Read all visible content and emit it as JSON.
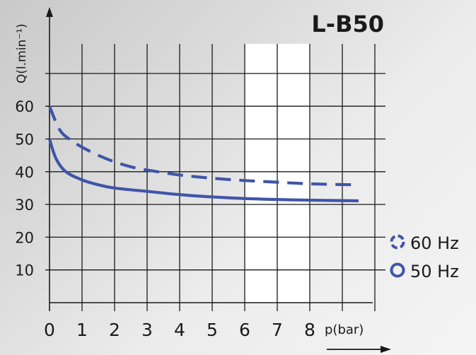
{
  "chart_data": {
    "type": "line",
    "title": "L-B50",
    "ylabel": "Q(l.min⁻¹)",
    "xlabel": "p(bar)",
    "x_ticks": [
      "0",
      "1",
      "2",
      "3",
      "4",
      "5",
      "6",
      "7",
      "8"
    ],
    "y_ticks": [
      "10",
      "20",
      "30",
      "40",
      "50",
      "60"
    ],
    "xlim": [
      0,
      10
    ],
    "ylim": [
      0,
      80
    ],
    "grid": true,
    "highlight_band": [
      6,
      8
    ],
    "legend_position": "bottom-right",
    "series": [
      {
        "name": "60 Hz",
        "color": "#3f55a8",
        "style": "dashed",
        "points": [
          [
            0,
            60
          ],
          [
            0.3,
            53
          ],
          [
            0.6,
            50
          ],
          [
            1,
            47.5
          ],
          [
            1.5,
            45
          ],
          [
            2,
            43
          ],
          [
            2.5,
            41.5
          ],
          [
            3,
            40.5
          ],
          [
            4,
            39
          ],
          [
            5,
            38
          ],
          [
            6,
            37.3
          ],
          [
            7,
            36.8
          ],
          [
            8,
            36.3
          ],
          [
            9.4,
            36
          ]
        ]
      },
      {
        "name": "50 Hz",
        "color": "#3f55a8",
        "style": "solid",
        "points": [
          [
            0,
            50
          ],
          [
            0.2,
            44
          ],
          [
            0.5,
            40
          ],
          [
            1,
            37.5
          ],
          [
            1.5,
            36
          ],
          [
            2,
            35
          ],
          [
            3,
            34
          ],
          [
            4,
            33
          ],
          [
            5,
            32.3
          ],
          [
            6,
            31.8
          ],
          [
            7,
            31.5
          ],
          [
            8,
            31.3
          ],
          [
            9.5,
            31.1
          ]
        ]
      }
    ]
  }
}
